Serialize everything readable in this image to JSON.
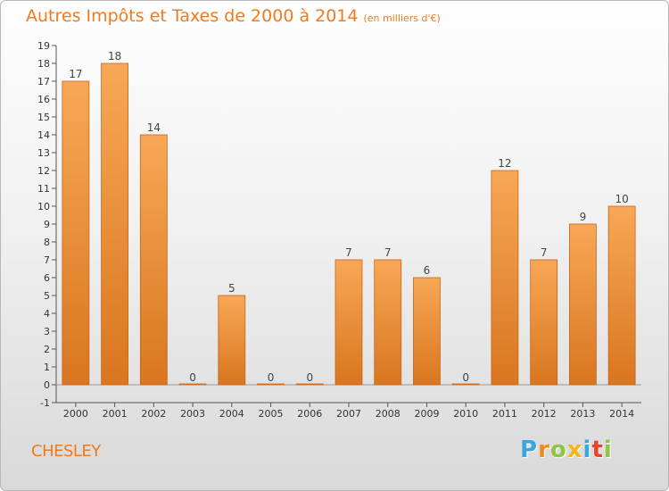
{
  "title": "Autres Impôts et Taxes de 2000 à 2014",
  "subtitle": "(en milliers d'€)",
  "city": "CHESLEY",
  "brand": {
    "letters": [
      "P",
      "r",
      "o",
      "x",
      "i",
      "t",
      "i"
    ],
    "colors": [
      "#3aa6df",
      "#f08a1c",
      "#8dc63f",
      "#f6b51a",
      "#3aa6df",
      "#e8442a",
      "#8dc63f"
    ]
  },
  "colors": {
    "accent": "#f07a1e",
    "bar_light": "#f7a856",
    "bar_dark": "#d9761f",
    "bar_edge": "#c8651a"
  },
  "chart_data": {
    "type": "bar",
    "title": "Autres Impôts et Taxes de 2000 à 2014",
    "subtitle": "(en milliers d'€)",
    "categories": [
      "2000",
      "2001",
      "2002",
      "2003",
      "2004",
      "2005",
      "2006",
      "2007",
      "2008",
      "2009",
      "2010",
      "2011",
      "2012",
      "2013",
      "2014"
    ],
    "values": [
      17,
      18,
      14,
      0,
      5,
      0,
      0,
      7,
      7,
      6,
      0,
      12,
      7,
      9,
      10
    ],
    "data_labels": [
      "17",
      "18",
      "14",
      "0",
      "5",
      "0",
      "0",
      "7",
      "7",
      "6",
      "0",
      "12",
      "7",
      "9",
      "10"
    ],
    "ylim": [
      -1,
      19
    ],
    "yticks": [
      "-1",
      "0",
      "1",
      "2",
      "3",
      "4",
      "5",
      "6",
      "7",
      "8",
      "9",
      "10",
      "11",
      "12",
      "13",
      "14",
      "15",
      "16",
      "17",
      "18",
      "19"
    ],
    "ytick_values": [
      -1,
      0,
      1,
      2,
      3,
      4,
      5,
      6,
      7,
      8,
      9,
      10,
      11,
      12,
      13,
      14,
      15,
      16,
      17,
      18,
      19
    ],
    "xlabel": "",
    "ylabel": "",
    "grid": false,
    "legend": "none"
  }
}
